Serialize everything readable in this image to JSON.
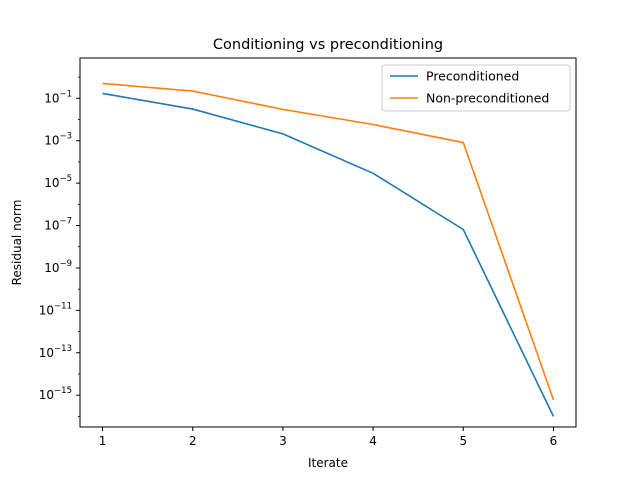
{
  "chart_data": {
    "type": "line",
    "title": "Conditioning vs preconditioning",
    "xlabel": "Iterate",
    "ylabel": "Residual norm",
    "yscale": "log",
    "x": [
      1,
      2,
      3,
      4,
      5,
      6
    ],
    "xlim": [
      0.75,
      6.25
    ],
    "ylim_exponent": [
      -16.5,
      0.9
    ],
    "x_ticks": [
      "1",
      "2",
      "3",
      "4",
      "5",
      "6"
    ],
    "y_tick_exponents": [
      -15,
      -13,
      -11,
      -9,
      -7,
      -5,
      -3,
      -1
    ],
    "y_tick_base": "10",
    "grid": false,
    "legend_position": "top-right",
    "series": [
      {
        "name": "Preconditioned",
        "color": "#1f77b4",
        "values": [
          0.17,
          0.031,
          0.0021,
          2.9e-05,
          6.5e-08,
          1e-16
        ]
      },
      {
        "name": "Non-preconditioned",
        "color": "#ff7f0e",
        "values": [
          0.5,
          0.22,
          0.03,
          0.0058,
          0.00082,
          6e-16
        ]
      }
    ]
  }
}
